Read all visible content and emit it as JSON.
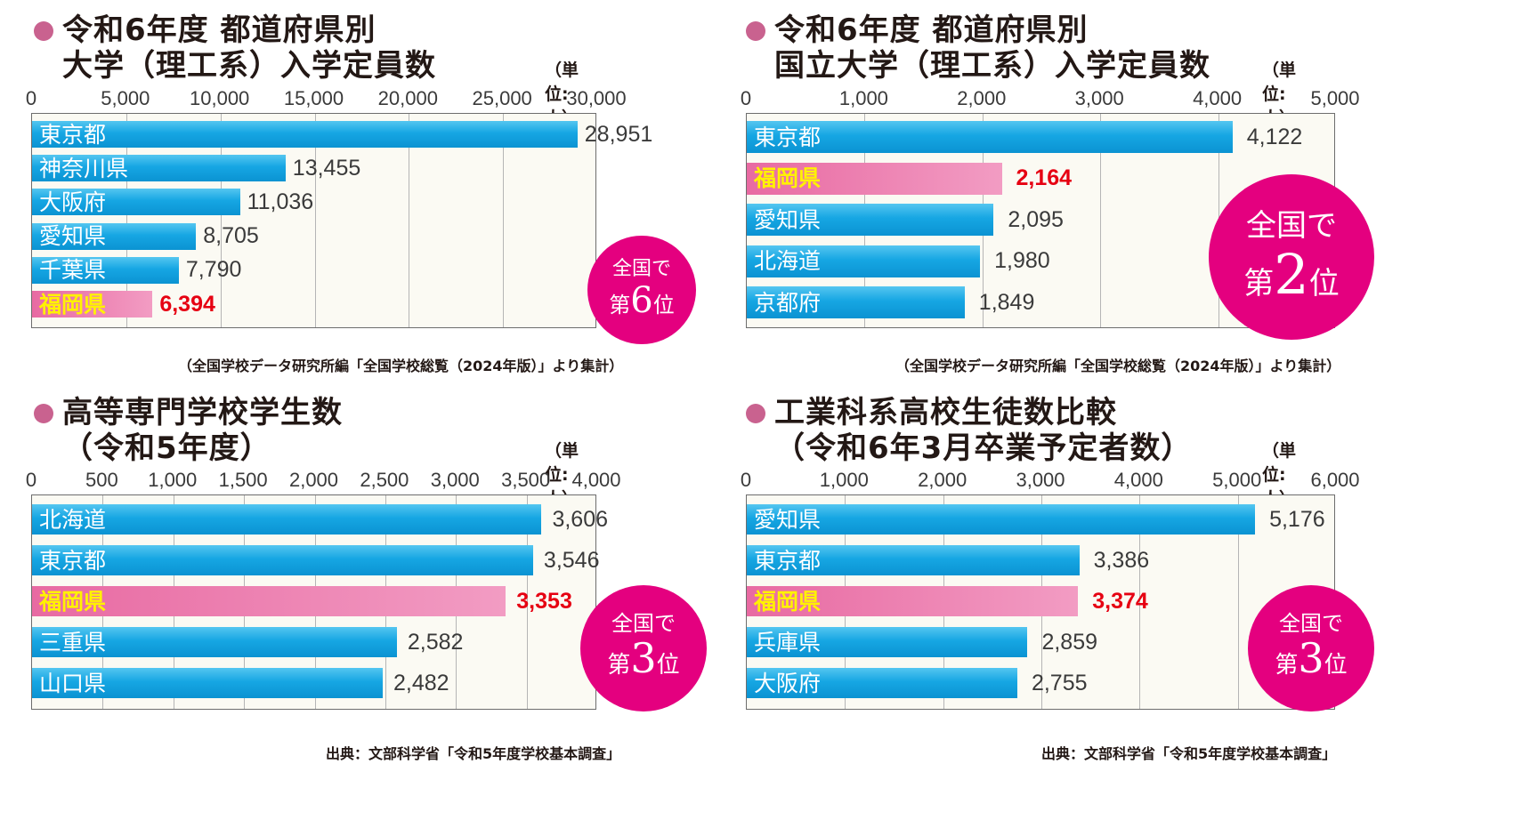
{
  "chart_data": [
    {
      "type": "bar",
      "title_lines": [
        "令和6年度 都道府県別",
        "大学（理工系）入学定員数"
      ],
      "unit": "（単位:人）",
      "xlim": [
        0,
        30000
      ],
      "ticks": [
        "0",
        "5,000",
        "10,000",
        "15,000",
        "20,000",
        "25,000",
        "30,000"
      ],
      "categories": [
        "東京都",
        "神奈川県",
        "大阪府",
        "愛知県",
        "千葉県",
        "福岡県"
      ],
      "values": [
        28951,
        13455,
        11036,
        8705,
        7790,
        6394
      ],
      "value_labels": [
        "28,951",
        "13,455",
        "11,036",
        "8,705",
        "7,790",
        "6,394"
      ],
      "highlight": "福岡県",
      "badge": {
        "line1": "全国で",
        "prefix": "第",
        "number": "6",
        "suffix": "位"
      },
      "source": "（全国学校データ研究所編「全国学校総覧（2024年版）」より集計）"
    },
    {
      "type": "bar",
      "title_lines": [
        "令和6年度 都道府県別",
        "国立大学（理工系）入学定員数"
      ],
      "unit": "（単位:人）",
      "xlim": [
        0,
        5000
      ],
      "ticks": [
        "0",
        "1,000",
        "2,000",
        "3,000",
        "4,000",
        "5,000"
      ],
      "categories": [
        "東京都",
        "福岡県",
        "愛知県",
        "北海道",
        "京都府"
      ],
      "values": [
        4122,
        2164,
        2095,
        1980,
        1849
      ],
      "value_labels": [
        "4,122",
        "2,164",
        "2,095",
        "1,980",
        "1,849"
      ],
      "highlight": "福岡県",
      "badge": {
        "line1": "全国で",
        "prefix": "第",
        "number": "2",
        "suffix": "位"
      },
      "source": "（全国学校データ研究所編「全国学校総覧（2024年版）」より集計）"
    },
    {
      "type": "bar",
      "title_lines": [
        "高等専門学校学生数",
        "（令和5年度）"
      ],
      "unit": "（単位:人）",
      "xlim": [
        0,
        4000
      ],
      "ticks": [
        "0",
        "500",
        "1,000",
        "1,500",
        "2,000",
        "2,500",
        "3,000",
        "3,500",
        "4,000"
      ],
      "categories": [
        "北海道",
        "東京都",
        "福岡県",
        "三重県",
        "山口県"
      ],
      "values": [
        3606,
        3546,
        3353,
        2582,
        2482
      ],
      "value_labels": [
        "3,606",
        "3,546",
        "3,353",
        "2,582",
        "2,482"
      ],
      "highlight": "福岡県",
      "badge": {
        "line1": "全国で",
        "prefix": "第",
        "number": "3",
        "suffix": "位"
      },
      "source": "出典：文部科学省「令和5年度学校基本調査」"
    },
    {
      "type": "bar",
      "title_lines": [
        "工業科系高校生徒数比較",
        "（令和6年3月卒業予定者数）"
      ],
      "unit": "（単位:人）",
      "xlim": [
        0,
        6000
      ],
      "ticks": [
        "0",
        "1,000",
        "2,000",
        "3,000",
        "4,000",
        "5,000",
        "6,000"
      ],
      "categories": [
        "愛知県",
        "東京都",
        "福岡県",
        "兵庫県",
        "大阪府"
      ],
      "values": [
        5176,
        3386,
        3374,
        2859,
        2755
      ],
      "value_labels": [
        "5,176",
        "3,386",
        "3,374",
        "2,859",
        "2,755"
      ],
      "highlight": "福岡県",
      "badge": {
        "line1": "全国で",
        "prefix": "第",
        "number": "3",
        "suffix": "位"
      },
      "source": "出典：文部科学省「令和5年度学校基本調査」"
    }
  ]
}
